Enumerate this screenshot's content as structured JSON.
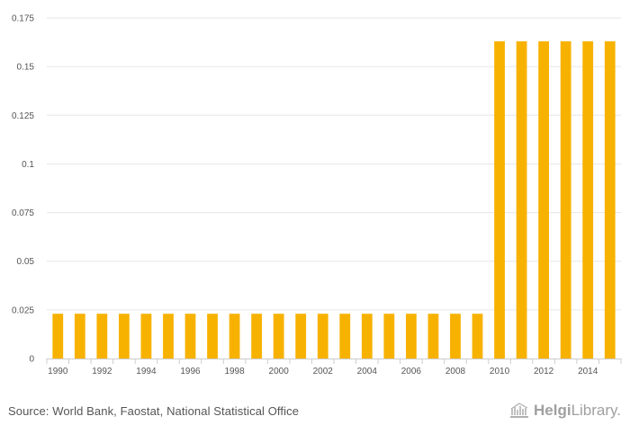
{
  "chart_data": {
    "type": "bar",
    "categories": [
      "1990",
      "1991",
      "1992",
      "1993",
      "1994",
      "1995",
      "1996",
      "1997",
      "1998",
      "1999",
      "2000",
      "2001",
      "2002",
      "2003",
      "2004",
      "2005",
      "2006",
      "2007",
      "2008",
      "2009",
      "2010",
      "2011",
      "2012",
      "2013",
      "2014",
      "2015"
    ],
    "x_tick_labels": [
      "1990",
      "1992",
      "1994",
      "1996",
      "1998",
      "2000",
      "2002",
      "2004",
      "2006",
      "2008",
      "2010",
      "2012",
      "2014"
    ],
    "values": [
      0.023,
      0.023,
      0.023,
      0.023,
      0.023,
      0.023,
      0.023,
      0.023,
      0.023,
      0.023,
      0.023,
      0.023,
      0.023,
      0.023,
      0.023,
      0.023,
      0.023,
      0.023,
      0.023,
      0.023,
      0.163,
      0.163,
      0.163,
      0.163,
      0.163,
      0.163
    ],
    "y_ticks": [
      0,
      0.025,
      0.05,
      0.075,
      0.1,
      0.125,
      0.15,
      0.175
    ],
    "y_tick_labels": [
      "0",
      "0.025",
      "0.05",
      "0.075",
      "0.1",
      "0.125",
      "0.15",
      "0.175"
    ],
    "ylim": [
      0,
      0.175
    ],
    "grid": true,
    "bar_color": "#f7b200",
    "title": "",
    "xlabel": "",
    "ylabel": ""
  },
  "footer": {
    "source": "Source: World Bank, Faostat, National Statistical Office",
    "brand_part1": "Helgi",
    "brand_part2": "Library."
  }
}
